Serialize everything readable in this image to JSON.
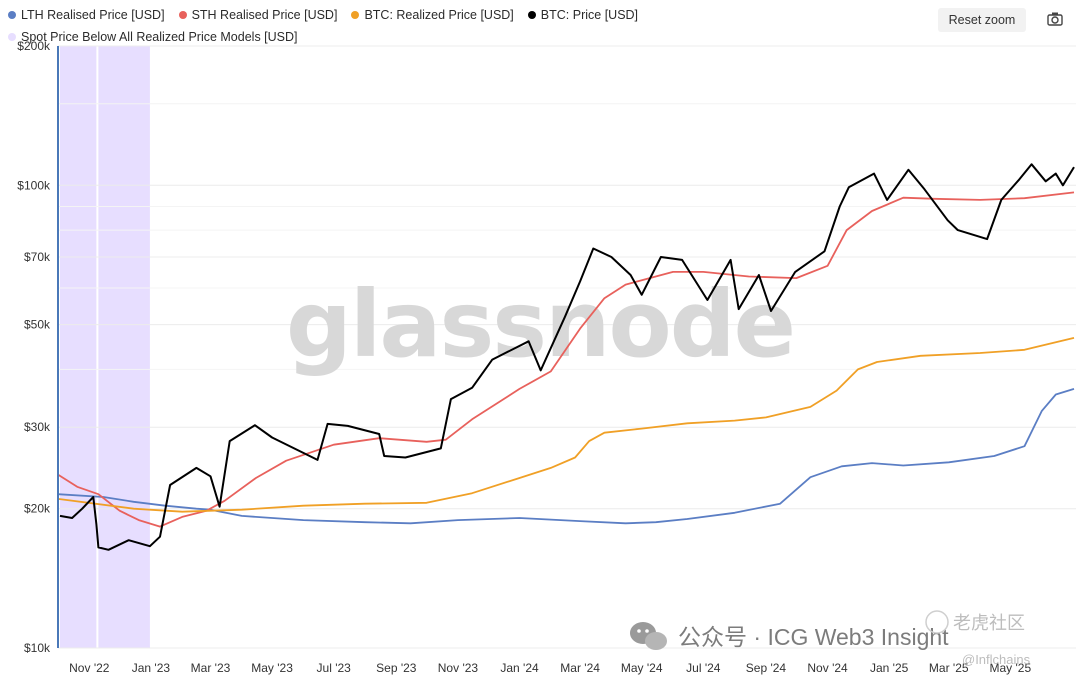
{
  "toolbar": {
    "reset_label": "Reset zoom",
    "camera_icon": "camera-icon"
  },
  "watermark": {
    "text": "glassnode"
  },
  "footer": {
    "text": "公众号 · ICG Web3 Insight"
  },
  "corner_watermark": {
    "line1": "老虎社区",
    "line2": "@Inflchains"
  },
  "colors": {
    "lth": "#5b7ec4",
    "sth": "#e8615c",
    "realized": "#f0a026",
    "price": "#000000",
    "spot_below": "#e7deff",
    "axis": "#4a78b8"
  },
  "chart_data": {
    "type": "line",
    "y_scale": "log",
    "ylim": [
      10000,
      200000
    ],
    "x_range": [
      "2022-10-01",
      "2025-07-05"
    ],
    "y_ticks": [
      {
        "v": 10000,
        "label": "$10k"
      },
      {
        "v": 20000,
        "label": "$20k"
      },
      {
        "v": 30000,
        "label": "$30k"
      },
      {
        "v": 50000,
        "label": "$50k"
      },
      {
        "v": 70000,
        "label": "$70k"
      },
      {
        "v": 100000,
        "label": "$100k"
      },
      {
        "v": 200000,
        "label": "$200k"
      }
    ],
    "x_ticks": [
      {
        "date": "2022-11-01",
        "label": "Nov '22"
      },
      {
        "date": "2023-01-01",
        "label": "Jan '23"
      },
      {
        "date": "2023-03-01",
        "label": "Mar '23"
      },
      {
        "date": "2023-05-01",
        "label": "May '23"
      },
      {
        "date": "2023-07-01",
        "label": "Jul '23"
      },
      {
        "date": "2023-09-01",
        "label": "Sep '23"
      },
      {
        "date": "2023-11-01",
        "label": "Nov '23"
      },
      {
        "date": "2024-01-01",
        "label": "Jan '24"
      },
      {
        "date": "2024-03-01",
        "label": "Mar '24"
      },
      {
        "date": "2024-05-01",
        "label": "May '24"
      },
      {
        "date": "2024-07-01",
        "label": "Jul '24"
      },
      {
        "date": "2024-09-01",
        "label": "Sep '24"
      },
      {
        "date": "2024-11-01",
        "label": "Nov '24"
      },
      {
        "date": "2025-01-01",
        "label": "Jan '25"
      },
      {
        "date": "2025-03-01",
        "label": "Mar '25"
      },
      {
        "date": "2025-05-01",
        "label": "May '25"
      }
    ],
    "spot_below_ranges": [
      [
        "2022-10-03",
        "2022-11-08"
      ],
      [
        "2022-11-10",
        "2022-12-31"
      ]
    ],
    "series": [
      {
        "name": "LTH Realised Price [USD]",
        "key": "lth",
        "points": [
          [
            "2022-10-01",
            21500
          ],
          [
            "2022-11-15",
            21200
          ],
          [
            "2022-12-15",
            20700
          ],
          [
            "2023-01-15",
            20300
          ],
          [
            "2023-02-15",
            20000
          ],
          [
            "2023-03-01",
            19900
          ],
          [
            "2023-04-01",
            19300
          ],
          [
            "2023-06-01",
            18900
          ],
          [
            "2023-08-01",
            18700
          ],
          [
            "2023-09-15",
            18600
          ],
          [
            "2023-11-01",
            18900
          ],
          [
            "2024-01-01",
            19100
          ],
          [
            "2024-03-01",
            18800
          ],
          [
            "2024-04-15",
            18600
          ],
          [
            "2024-05-15",
            18700
          ],
          [
            "2024-06-15",
            19000
          ],
          [
            "2024-08-01",
            19600
          ],
          [
            "2024-09-15",
            20500
          ],
          [
            "2024-10-15",
            23400
          ],
          [
            "2024-11-15",
            24700
          ],
          [
            "2024-12-15",
            25100
          ],
          [
            "2025-01-15",
            24800
          ],
          [
            "2025-03-01",
            25200
          ],
          [
            "2025-04-15",
            26000
          ],
          [
            "2025-05-15",
            27300
          ],
          [
            "2025-06-01",
            32500
          ],
          [
            "2025-06-15",
            35300
          ],
          [
            "2025-07-03",
            36300
          ]
        ]
      },
      {
        "name": "STH Realised Price [USD]",
        "key": "sth",
        "points": [
          [
            "2022-10-01",
            23700
          ],
          [
            "2022-10-20",
            22300
          ],
          [
            "2022-11-10",
            21500
          ],
          [
            "2022-12-01",
            19800
          ],
          [
            "2022-12-20",
            18900
          ],
          [
            "2023-01-10",
            18300
          ],
          [
            "2023-02-01",
            19200
          ],
          [
            "2023-02-25",
            19800
          ],
          [
            "2023-03-15",
            20800
          ],
          [
            "2023-04-15",
            23300
          ],
          [
            "2023-05-15",
            25400
          ],
          [
            "2023-07-01",
            27500
          ],
          [
            "2023-08-15",
            28400
          ],
          [
            "2023-10-01",
            27900
          ],
          [
            "2023-10-20",
            28200
          ],
          [
            "2023-11-15",
            31200
          ],
          [
            "2024-01-01",
            36300
          ],
          [
            "2024-02-01",
            39600
          ],
          [
            "2024-03-01",
            49000
          ],
          [
            "2024-03-25",
            57000
          ],
          [
            "2024-04-15",
            61000
          ],
          [
            "2024-06-01",
            65000
          ],
          [
            "2024-07-01",
            65000
          ],
          [
            "2024-08-15",
            63500
          ],
          [
            "2024-10-01",
            63000
          ],
          [
            "2024-11-01",
            67000
          ],
          [
            "2024-11-20",
            80000
          ],
          [
            "2024-12-15",
            88000
          ],
          [
            "2025-01-15",
            94000
          ],
          [
            "2025-02-15",
            93500
          ],
          [
            "2025-04-01",
            93000
          ],
          [
            "2025-05-15",
            93800
          ],
          [
            "2025-07-03",
            96500
          ]
        ]
      },
      {
        "name": "BTC: Realized Price [USD]",
        "key": "realized",
        "points": [
          [
            "2022-10-01",
            21000
          ],
          [
            "2022-12-15",
            20000
          ],
          [
            "2023-02-01",
            19700
          ],
          [
            "2023-04-01",
            19900
          ],
          [
            "2023-06-01",
            20300
          ],
          [
            "2023-08-01",
            20500
          ],
          [
            "2023-10-01",
            20600
          ],
          [
            "2023-11-15",
            21600
          ],
          [
            "2024-01-01",
            23300
          ],
          [
            "2024-02-01",
            24500
          ],
          [
            "2024-02-25",
            25800
          ],
          [
            "2024-03-10",
            28000
          ],
          [
            "2024-03-25",
            29200
          ],
          [
            "2024-05-01",
            29800
          ],
          [
            "2024-06-15",
            30600
          ],
          [
            "2024-08-01",
            31000
          ],
          [
            "2024-09-01",
            31500
          ],
          [
            "2024-10-15",
            33200
          ],
          [
            "2024-11-10",
            36000
          ],
          [
            "2024-12-01",
            40000
          ],
          [
            "2024-12-20",
            41500
          ],
          [
            "2025-02-01",
            42800
          ],
          [
            "2025-04-01",
            43400
          ],
          [
            "2025-05-15",
            44100
          ],
          [
            "2025-07-03",
            46800
          ]
        ]
      },
      {
        "name": "BTC: Price [USD]",
        "key": "price",
        "points": [
          [
            "2022-10-03",
            19300
          ],
          [
            "2022-10-15",
            19100
          ],
          [
            "2022-10-25",
            20000
          ],
          [
            "2022-11-05",
            21200
          ],
          [
            "2022-11-08",
            18500
          ],
          [
            "2022-11-10",
            16500
          ],
          [
            "2022-11-20",
            16300
          ],
          [
            "2022-12-10",
            17100
          ],
          [
            "2022-12-31",
            16600
          ],
          [
            "2023-01-10",
            17400
          ],
          [
            "2023-01-20",
            22500
          ],
          [
            "2023-02-15",
            24500
          ],
          [
            "2023-03-01",
            23500
          ],
          [
            "2023-03-10",
            20200
          ],
          [
            "2023-03-20",
            28000
          ],
          [
            "2023-04-14",
            30300
          ],
          [
            "2023-05-01",
            28500
          ],
          [
            "2023-06-15",
            25500
          ],
          [
            "2023-06-25",
            30500
          ],
          [
            "2023-07-15",
            30200
          ],
          [
            "2023-08-15",
            29000
          ],
          [
            "2023-08-20",
            26000
          ],
          [
            "2023-09-10",
            25800
          ],
          [
            "2023-10-15",
            27000
          ],
          [
            "2023-10-25",
            34500
          ],
          [
            "2023-11-15",
            36500
          ],
          [
            "2023-12-05",
            42000
          ],
          [
            "2024-01-10",
            46000
          ],
          [
            "2024-01-22",
            39800
          ],
          [
            "2024-02-15",
            52000
          ],
          [
            "2024-03-01",
            62000
          ],
          [
            "2024-03-14",
            73000
          ],
          [
            "2024-04-01",
            70000
          ],
          [
            "2024-04-20",
            64000
          ],
          [
            "2024-05-01",
            58000
          ],
          [
            "2024-05-20",
            70000
          ],
          [
            "2024-06-10",
            69000
          ],
          [
            "2024-07-05",
            56500
          ],
          [
            "2024-07-28",
            69000
          ],
          [
            "2024-08-05",
            54000
          ],
          [
            "2024-08-25",
            64000
          ],
          [
            "2024-09-06",
            53500
          ],
          [
            "2024-09-30",
            65000
          ],
          [
            "2024-10-29",
            72000
          ],
          [
            "2024-11-13",
            90000
          ],
          [
            "2024-11-22",
            99000
          ],
          [
            "2024-12-17",
            106000
          ],
          [
            "2024-12-30",
            93000
          ],
          [
            "2025-01-20",
            108000
          ],
          [
            "2025-02-05",
            98000
          ],
          [
            "2025-02-28",
            84000
          ],
          [
            "2025-03-10",
            80000
          ],
          [
            "2025-04-08",
            76500
          ],
          [
            "2025-04-22",
            93000
          ],
          [
            "2025-05-10",
            103000
          ],
          [
            "2025-05-22",
            111000
          ],
          [
            "2025-06-05",
            102000
          ],
          [
            "2025-06-15",
            106000
          ],
          [
            "2025-06-22",
            100000
          ],
          [
            "2025-07-03",
            109500
          ]
        ]
      }
    ],
    "legend_extra": {
      "name": "Spot Price Below All Realized Price Models [USD]",
      "key": "spot_below"
    }
  }
}
